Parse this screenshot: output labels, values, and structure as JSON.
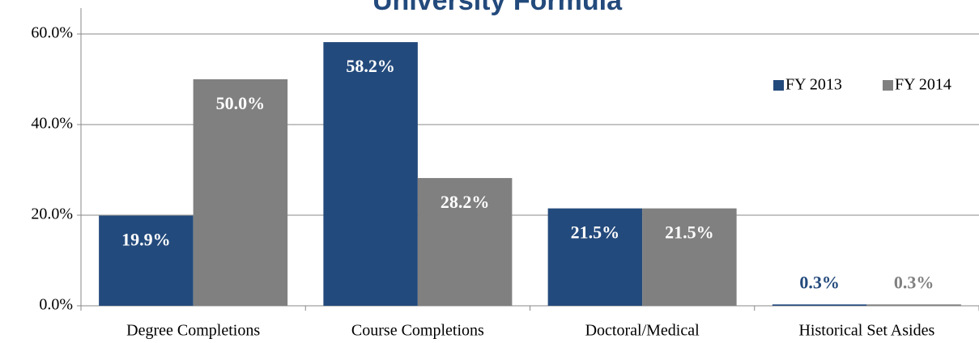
{
  "chart_data": {
    "type": "bar",
    "title": "University Formula",
    "categories": [
      "Degree Completions",
      "Course Completions",
      "Doctoral/Medical",
      "Historical Set Asides"
    ],
    "series": [
      {
        "name": "FY 2013",
        "color": "#234a7c",
        "values": [
          19.9,
          58.2,
          21.5,
          0.3
        ],
        "value_labels": [
          "19.9%",
          "58.2%",
          "21.5%",
          "0.3%"
        ]
      },
      {
        "name": "FY 2014",
        "color": "#808080",
        "values": [
          50.0,
          28.2,
          21.5,
          0.3
        ],
        "value_labels": [
          "50.0%",
          "28.2%",
          "21.5%",
          "0.3%"
        ]
      }
    ],
    "ylim": [
      0,
      60
    ],
    "yticks": [
      {
        "value": 0,
        "label": "0.0%"
      },
      {
        "value": 20,
        "label": "20.0%"
      },
      {
        "value": 40,
        "label": "40.0%"
      },
      {
        "value": 60,
        "label": "60.0%"
      }
    ],
    "grid": true,
    "legend": "top-right"
  }
}
